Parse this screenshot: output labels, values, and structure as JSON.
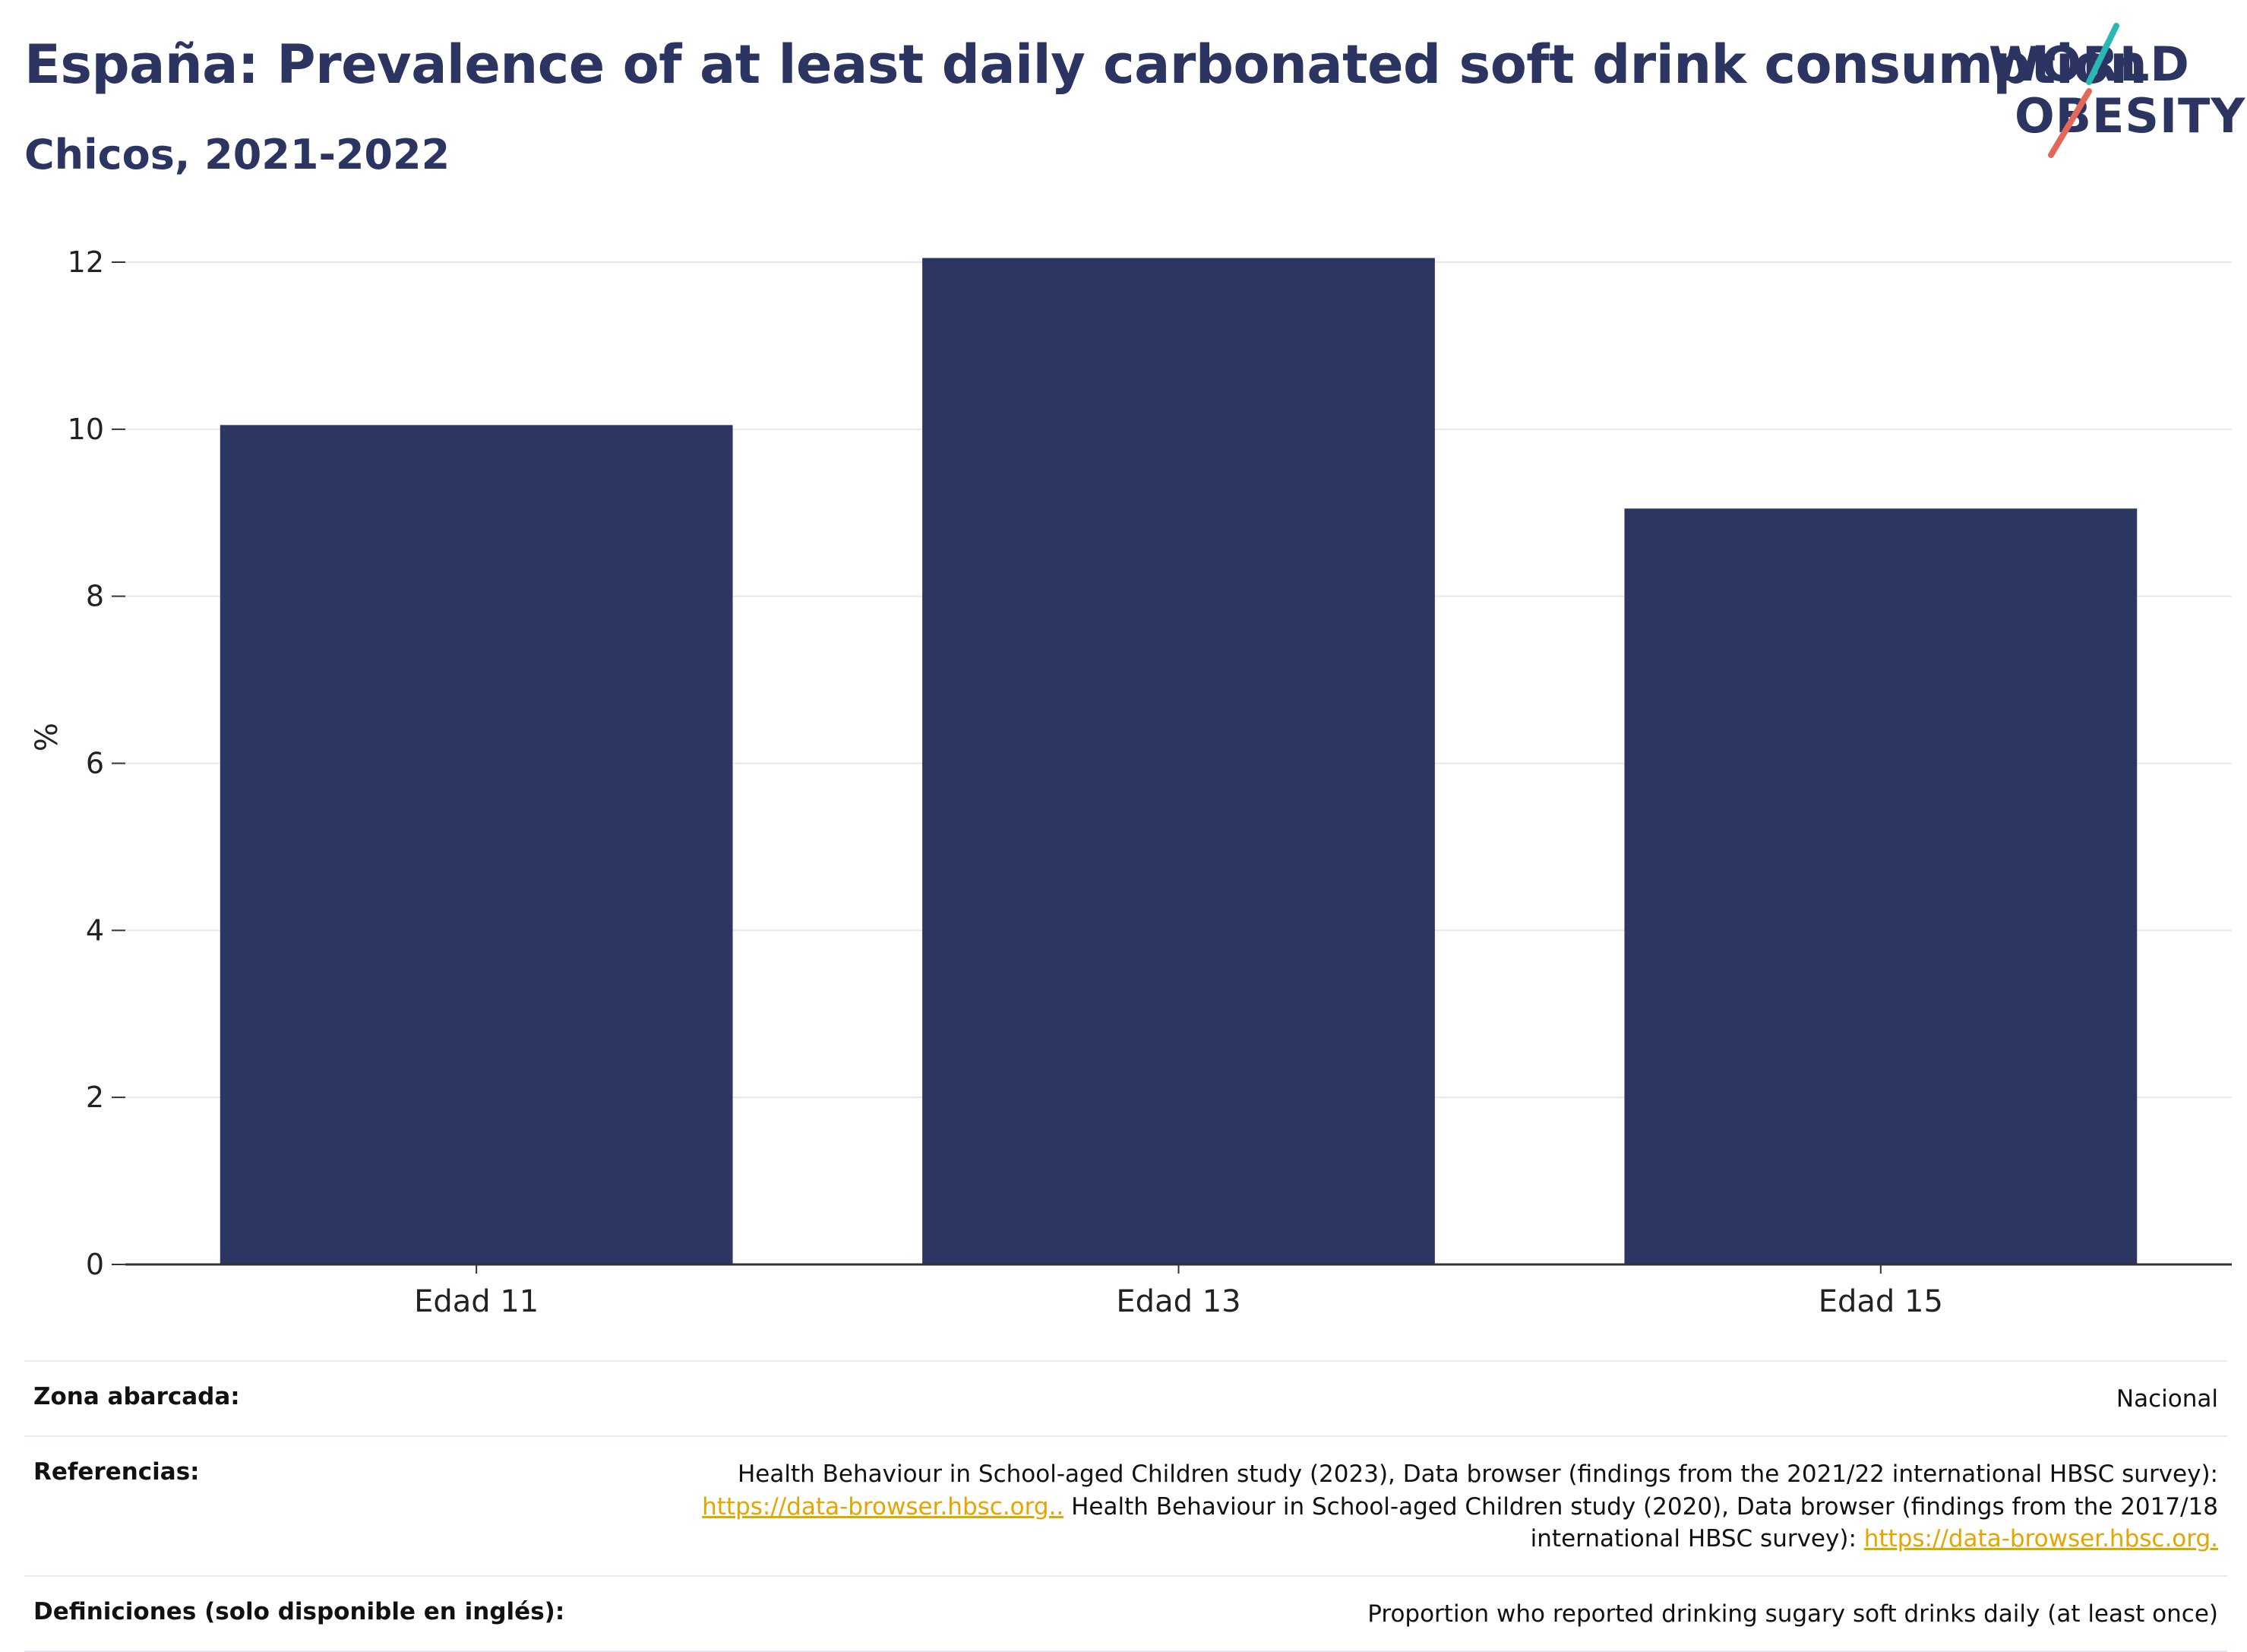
{
  "title": "España: Prevalence of at least daily carbonated soft drink consumption",
  "subtitle": "Chicos, 2021-2022",
  "logo": {
    "line1": "WORLD",
    "line2": "OBESITY"
  },
  "colors": {
    "bar": "#2b3662",
    "title": "#2c3561",
    "grid": "#e8e8e8",
    "axis": "#333333",
    "link": "#e6a400",
    "logo_teal": "#2bb7b3",
    "logo_coral": "#e4685a"
  },
  "chart_data": {
    "type": "bar",
    "categories": [
      "Edad 11",
      "Edad 13",
      "Edad 15"
    ],
    "values": [
      10.05,
      12.05,
      9.05
    ],
    "ylabel": "%",
    "xlabel": "",
    "ylim": [
      0,
      12
    ],
    "yticks": [
      0,
      2,
      4,
      6,
      8,
      10,
      12
    ],
    "grid": true,
    "legend": "none"
  },
  "info": {
    "zona_label": "Zona abarcada:",
    "zona_value": "Nacional",
    "ref_label": "Referencias:",
    "ref_text_1": "Health Behaviour in School-aged Children study (2023), Data browser (findings from the 2021/22 international HBSC survey):",
    "ref_link_1": "https://data-browser.hbsc.org..",
    "ref_text_2": " Health Behaviour in School-aged Children study (2020), Data browser (findings from the 2017/18",
    "ref_text_3": "international HBSC survey): ",
    "ref_link_2": "https://data-browser.hbsc.org.",
    "def_label": "Definiciones (solo disponible en inglés):",
    "def_value": "Proportion who reported drinking sugary soft drinks daily (at least once)"
  }
}
